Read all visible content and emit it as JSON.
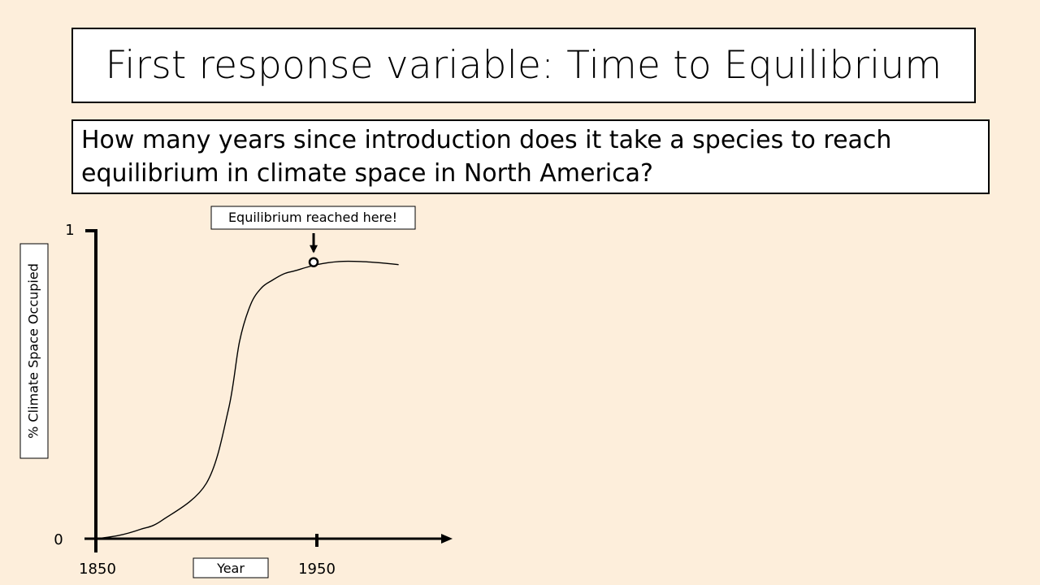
{
  "slide": {
    "title": "First response variable: Time to Equilibrium",
    "question": "How many years since introduction does it take a species to reach equilibrium in climate space in North America?"
  },
  "chart_data": {
    "type": "line",
    "title": "",
    "xlabel": "Year",
    "ylabel": "% Climate Space Occupied",
    "x_ticks": [
      1850,
      1950
    ],
    "y_ticks": [
      0,
      1
    ],
    "xlim": [
      1850,
      2012
    ],
    "ylim": [
      0,
      1
    ],
    "grid": false,
    "series": [
      {
        "x": [
          1850,
          1860,
          1870,
          1880,
          1900,
          1910,
          1915,
          1920,
          1925,
          1930,
          1935,
          1940,
          1950,
          1960,
          1970,
          1980,
          1987
        ],
        "values": [
          0.0,
          0.01,
          0.03,
          0.06,
          0.18,
          0.42,
          0.64,
          0.76,
          0.815,
          0.84,
          0.86,
          0.87,
          0.89,
          0.9,
          0.9,
          0.895,
          0.89
        ]
      }
    ],
    "annotations": [
      {
        "text": "Equilibrium reached here!",
        "x": 1950,
        "y": 0.89
      }
    ]
  }
}
